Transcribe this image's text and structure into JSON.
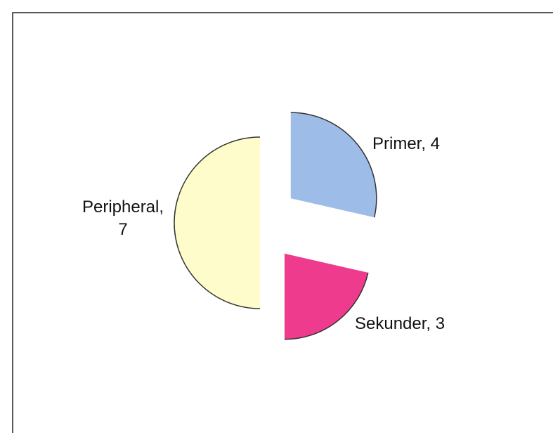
{
  "chart_data": {
    "type": "pie",
    "labels": [
      [
        "Primer, 4"
      ],
      [
        "Sekunder, 3"
      ],
      [
        "Peripheral,",
        "7"
      ]
    ],
    "values": [
      4,
      3,
      7
    ],
    "colors": [
      "#9dbde8",
      "#ee3b8d",
      "#fdfcca"
    ]
  }
}
